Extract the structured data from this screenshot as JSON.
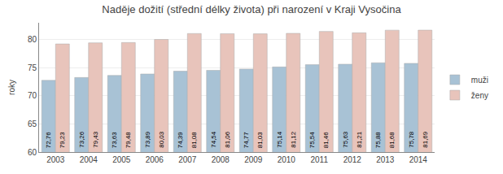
{
  "chart_data": {
    "type": "bar",
    "title": "Naděje dožití (střední délky života) při narození v Kraji Vysočina",
    "ylabel": "roky",
    "categories": [
      "2003",
      "2004",
      "2005",
      "2006",
      "2007",
      "2008",
      "2009",
      "2010",
      "2011",
      "2012",
      "2013",
      "2014"
    ],
    "series": [
      {
        "name": "muži",
        "color": "#a8c2d5",
        "values": [
          72.76,
          73.26,
          73.63,
          73.89,
          74.39,
          74.54,
          74.77,
          75.14,
          75.54,
          75.63,
          75.88,
          75.78
        ],
        "value_labels": [
          "72,76",
          "73,26",
          "73,63",
          "73,89",
          "74,39",
          "74,54",
          "74,77",
          "75,14",
          "75,54",
          "75,63",
          "75,88",
          "75,78"
        ]
      },
      {
        "name": "ženy",
        "color": "#e8c4bb",
        "values": [
          79.23,
          79.43,
          79.48,
          80.03,
          81.08,
          81.06,
          81.03,
          81.12,
          81.46,
          81.21,
          81.68,
          81.69
        ],
        "value_labels": [
          "79,23",
          "79,43",
          "79,48",
          "80,03",
          "81,08",
          "81,06",
          "81,03",
          "81,12",
          "81,46",
          "81,21",
          "81,68",
          "81,69"
        ]
      }
    ],
    "ylim": [
      60,
      83
    ],
    "yticks": [
      60,
      65,
      70,
      75,
      80
    ],
    "grid": true,
    "legend": "right",
    "data_labels": true
  }
}
